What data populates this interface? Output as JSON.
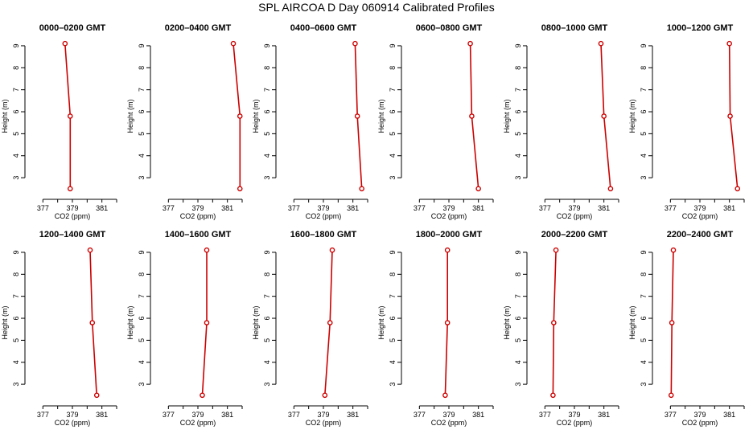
{
  "figure_title": "SPL AIRCOA D  Day 060914  Calibrated Profiles",
  "colors": {
    "line": "#cc0000",
    "axis": "#000000"
  },
  "chart_data": [
    {
      "type": "line",
      "title": "0000–0200 GMT",
      "xlabel": "CO2 (ppm)",
      "ylabel": "Height (m)",
      "xlim": [
        376,
        382
      ],
      "ylim": [
        2.2,
        9.4
      ],
      "xticks": [
        "377",
        "379",
        "381"
      ],
      "xtick_values": [
        377,
        379,
        381
      ],
      "xtick_marks": [
        377,
        378,
        379,
        380,
        381,
        382
      ],
      "yticks": [
        "3",
        "4",
        "5",
        "6",
        "7",
        "8",
        "9"
      ],
      "x": [
        378.5,
        378.85,
        378.85
      ],
      "y": [
        9.1,
        5.8,
        2.5
      ]
    },
    {
      "type": "line",
      "title": "0200–0400 GMT",
      "xlabel": "CO2 (ppm)",
      "ylabel": "Height (m)",
      "xlim": [
        376,
        382
      ],
      "ylim": [
        2.2,
        9.4
      ],
      "xticks": [
        "377",
        "379",
        "381"
      ],
      "xtick_values": [
        377,
        379,
        381
      ],
      "xtick_marks": [
        377,
        378,
        379,
        380,
        381,
        382
      ],
      "yticks": [
        "3",
        "4",
        "5",
        "6",
        "7",
        "8",
        "9"
      ],
      "x": [
        381.4,
        381.85,
        381.85
      ],
      "y": [
        9.1,
        5.8,
        2.5
      ]
    },
    {
      "type": "line",
      "title": "0400–0600 GMT",
      "xlabel": "CO2 (ppm)",
      "ylabel": "Height (m)",
      "xlim": [
        376,
        382
      ],
      "ylim": [
        2.2,
        9.4
      ],
      "xticks": [
        "377",
        "379",
        "381"
      ],
      "xtick_values": [
        377,
        379,
        381
      ],
      "xtick_marks": [
        377,
        378,
        379,
        380,
        381,
        382
      ],
      "yticks": [
        "3",
        "4",
        "5",
        "6",
        "7",
        "8",
        "9"
      ],
      "x": [
        381.15,
        381.3,
        381.6
      ],
      "y": [
        9.1,
        5.8,
        2.5
      ]
    },
    {
      "type": "line",
      "title": "0600–0800 GMT",
      "xlabel": "CO2 (ppm)",
      "ylabel": "Height (m)",
      "xlim": [
        376,
        382
      ],
      "ylim": [
        2.2,
        9.4
      ],
      "xticks": [
        "377",
        "379",
        "381"
      ],
      "xtick_values": [
        377,
        379,
        381
      ],
      "xtick_marks": [
        377,
        378,
        379,
        380,
        381,
        382
      ],
      "yticks": [
        "3",
        "4",
        "5",
        "6",
        "7",
        "8",
        "9"
      ],
      "x": [
        380.45,
        380.55,
        381.0
      ],
      "y": [
        9.1,
        5.8,
        2.5
      ]
    },
    {
      "type": "line",
      "title": "0800–1000 GMT",
      "xlabel": "CO2 (ppm)",
      "ylabel": "Height (m)",
      "xlim": [
        376,
        382
      ],
      "ylim": [
        2.2,
        9.4
      ],
      "xticks": [
        "377",
        "379",
        "381"
      ],
      "xtick_values": [
        377,
        379,
        381
      ],
      "xtick_marks": [
        377,
        378,
        379,
        380,
        381,
        382
      ],
      "yticks": [
        "3",
        "4",
        "5",
        "6",
        "7",
        "8",
        "9"
      ],
      "x": [
        380.8,
        381.0,
        381.45
      ],
      "y": [
        9.1,
        5.8,
        2.5
      ]
    },
    {
      "type": "line",
      "title": "1000–1200 GMT",
      "xlabel": "CO2 (ppm)",
      "ylabel": "Height (m)",
      "xlim": [
        376,
        382
      ],
      "ylim": [
        2.2,
        9.4
      ],
      "xticks": [
        "377",
        "379",
        "381"
      ],
      "xtick_values": [
        377,
        379,
        381
      ],
      "xtick_marks": [
        377,
        378,
        379,
        380,
        381,
        382
      ],
      "yticks": [
        "3",
        "4",
        "5",
        "6",
        "7",
        "8",
        "9"
      ],
      "x": [
        381.0,
        381.05,
        381.55
      ],
      "y": [
        9.1,
        5.8,
        2.5
      ]
    },
    {
      "type": "line",
      "title": "1200–1400 GMT",
      "xlabel": "CO2 (ppm)",
      "ylabel": "Height (m)",
      "xlim": [
        376,
        382
      ],
      "ylim": [
        2.2,
        9.4
      ],
      "xticks": [
        "377",
        "379",
        "381"
      ],
      "xtick_values": [
        377,
        379,
        381
      ],
      "xtick_marks": [
        377,
        378,
        379,
        380,
        381,
        382
      ],
      "yticks": [
        "3",
        "4",
        "5",
        "6",
        "7",
        "8",
        "9"
      ],
      "x": [
        380.2,
        380.35,
        380.65
      ],
      "y": [
        9.1,
        5.8,
        2.5
      ]
    },
    {
      "type": "line",
      "title": "1400–1600 GMT",
      "xlabel": "CO2 (ppm)",
      "ylabel": "Height (m)",
      "xlim": [
        376,
        382
      ],
      "ylim": [
        2.2,
        9.4
      ],
      "xticks": [
        "377",
        "379",
        "381"
      ],
      "xtick_values": [
        377,
        379,
        381
      ],
      "xtick_marks": [
        377,
        378,
        379,
        380,
        381,
        382
      ],
      "yticks": [
        "3",
        "4",
        "5",
        "6",
        "7",
        "8",
        "9"
      ],
      "x": [
        379.6,
        379.6,
        379.3
      ],
      "y": [
        9.1,
        5.8,
        2.5
      ]
    },
    {
      "type": "line",
      "title": "1600–1800 GMT",
      "xlabel": "CO2 (ppm)",
      "ylabel": "Height (m)",
      "xlim": [
        376,
        382
      ],
      "ylim": [
        2.2,
        9.4
      ],
      "xticks": [
        "377",
        "379",
        "381"
      ],
      "xtick_values": [
        377,
        379,
        381
      ],
      "xtick_marks": [
        377,
        378,
        379,
        380,
        381,
        382
      ],
      "yticks": [
        "3",
        "4",
        "5",
        "6",
        "7",
        "8",
        "9"
      ],
      "x": [
        379.6,
        379.45,
        379.1
      ],
      "y": [
        9.1,
        5.8,
        2.5
      ]
    },
    {
      "type": "line",
      "title": "1800–2000 GMT",
      "xlabel": "CO2 (ppm)",
      "ylabel": "Height (m)",
      "xlim": [
        376,
        382
      ],
      "ylim": [
        2.2,
        9.4
      ],
      "xticks": [
        "377",
        "379",
        "381"
      ],
      "xtick_values": [
        377,
        379,
        381
      ],
      "xtick_marks": [
        377,
        378,
        379,
        380,
        381,
        382
      ],
      "yticks": [
        "3",
        "4",
        "5",
        "6",
        "7",
        "8",
        "9"
      ],
      "x": [
        378.9,
        378.9,
        378.75
      ],
      "y": [
        9.1,
        5.8,
        2.5
      ]
    },
    {
      "type": "line",
      "title": "2000–2200 GMT",
      "xlabel": "CO2 (ppm)",
      "ylabel": "Height (m)",
      "xlim": [
        376,
        382
      ],
      "ylim": [
        2.2,
        9.4
      ],
      "xticks": [
        "377",
        "379",
        "381"
      ],
      "xtick_values": [
        377,
        379,
        381
      ],
      "xtick_marks": [
        377,
        378,
        379,
        380,
        381,
        382
      ],
      "yticks": [
        "3",
        "4",
        "5",
        "6",
        "7",
        "8",
        "9"
      ],
      "x": [
        377.75,
        377.6,
        377.55
      ],
      "y": [
        9.1,
        5.8,
        2.5
      ]
    },
    {
      "type": "line",
      "title": "2200–2400 GMT",
      "xlabel": "CO2 (ppm)",
      "ylabel": "Height (m)",
      "xlim": [
        376,
        382
      ],
      "ylim": [
        2.2,
        9.4
      ],
      "xticks": [
        "377",
        "379",
        "381"
      ],
      "xtick_values": [
        377,
        379,
        381
      ],
      "xtick_marks": [
        377,
        378,
        379,
        380,
        381,
        382
      ],
      "yticks": [
        "3",
        "4",
        "5",
        "6",
        "7",
        "8",
        "9"
      ],
      "x": [
        377.2,
        377.1,
        377.05
      ],
      "y": [
        9.1,
        5.8,
        2.5
      ]
    }
  ]
}
